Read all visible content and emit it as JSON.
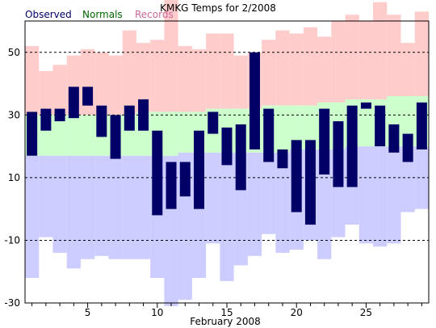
{
  "chart_data": {
    "type": "bar",
    "title": "KMKG Temps for 2/2008",
    "xlabel": "February 2008",
    "ylabel": "",
    "ylim": [
      -30,
      60
    ],
    "xlim": [
      0.5,
      29.5
    ],
    "grid": "dashed horizontal at 50, 30, 10, -10",
    "legend_placement": "top-left",
    "y_ticks": [
      50,
      30,
      10,
      -10,
      -30
    ],
    "y_tick_labels": [
      "50",
      "30",
      "10",
      "-10",
      "-30"
    ],
    "x_ticks": [
      5,
      10,
      15,
      20,
      25
    ],
    "x_tick_labels": [
      "5",
      "10",
      "15",
      "20",
      "25"
    ],
    "days": [
      1,
      2,
      3,
      4,
      5,
      6,
      7,
      8,
      9,
      10,
      11,
      12,
      13,
      14,
      15,
      16,
      17,
      18,
      19,
      20,
      21,
      22,
      23,
      24,
      25,
      26,
      27,
      28,
      29
    ],
    "series": [
      {
        "name": "Observed",
        "color": "#000066",
        "high": [
          31,
          32,
          32,
          39,
          39,
          33,
          30,
          33,
          35,
          25,
          15,
          15,
          25,
          31,
          26,
          27,
          50,
          32,
          19,
          22,
          22,
          32,
          28,
          33,
          34,
          33,
          27,
          24,
          34
        ],
        "low": [
          17,
          25,
          28,
          29,
          33,
          23,
          16,
          25,
          25,
          -2,
          0,
          4,
          0,
          24,
          14,
          6,
          19,
          15,
          13,
          -1,
          -5,
          11,
          7,
          7,
          32,
          20,
          18,
          15,
          19
        ]
      },
      {
        "name": "Normals",
        "color": "#ccffcc",
        "label_color": "#006600",
        "high": [
          30,
          30,
          30,
          30,
          30,
          30,
          30,
          30,
          31,
          31,
          31,
          31,
          31,
          32,
          32,
          32,
          32,
          33,
          33,
          33,
          33,
          34,
          34,
          35,
          35,
          35,
          36,
          36,
          36
        ],
        "low": [
          17,
          17,
          17,
          17,
          17,
          17,
          17,
          17,
          17,
          17,
          17,
          18,
          18,
          18,
          18,
          18,
          18,
          18,
          18,
          19,
          19,
          19,
          19,
          20,
          20,
          20,
          20,
          20,
          20
        ]
      },
      {
        "name": "Records",
        "color": "#ffcccc",
        "label_color": "#cc6699",
        "low_band_color": "#ccccff",
        "high": [
          52,
          44,
          46,
          49,
          51,
          50,
          49,
          57,
          53,
          54,
          67,
          52,
          51,
          56,
          56,
          49,
          50,
          54,
          57,
          56,
          58,
          55,
          60,
          62,
          60,
          66,
          62,
          53,
          63
        ],
        "low": [
          -22,
          -9,
          -14,
          -19,
          -16,
          -15,
          -16,
          -16,
          -16,
          -22,
          -31,
          -29,
          -22,
          -11,
          -23,
          -18,
          -15,
          -8,
          -14,
          -13,
          -10,
          -16,
          -9,
          -5,
          -11,
          -12,
          -11,
          -1,
          0
        ]
      }
    ]
  }
}
